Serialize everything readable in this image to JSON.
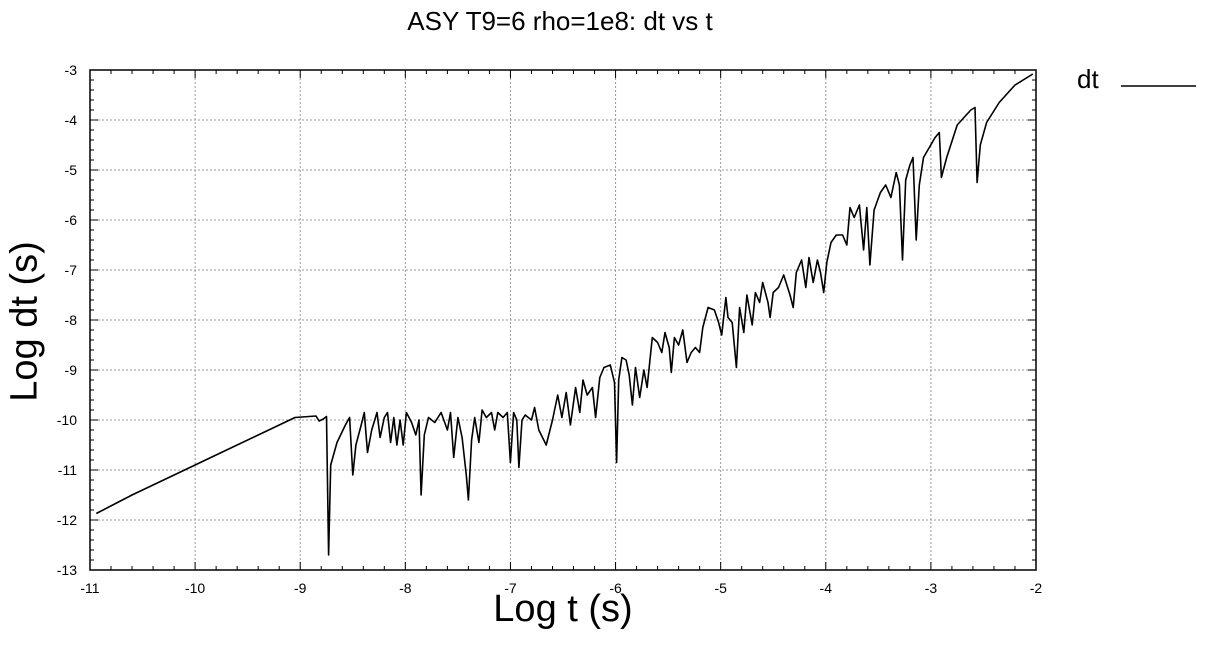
{
  "chart_data": {
    "type": "line",
    "title": "ASY T9=6 rho=1e8: dt vs t",
    "xlabel": "Log t (s)",
    "ylabel": "Log dt (s)",
    "xlim": [
      -11,
      -2
    ],
    "ylim": [
      -13,
      -3
    ],
    "xticks": [
      "-11",
      "-10",
      "-9",
      "-8",
      "-7",
      "-6",
      "-5",
      "-4",
      "-3",
      "-2"
    ],
    "yticks": [
      "-13",
      "-12",
      "-11",
      "-10",
      "-9",
      "-8",
      "-7",
      "-6",
      "-5",
      "-4",
      "-3"
    ],
    "grid": true,
    "legend_position": "top-right",
    "series": [
      {
        "name": "dt",
        "color": "#000000",
        "points": [
          [
            -10.94,
            -11.87
          ],
          [
            -10.6,
            -11.5
          ],
          [
            -10.2,
            -11.1
          ],
          [
            -9.8,
            -10.7
          ],
          [
            -9.4,
            -10.3
          ],
          [
            -9.05,
            -9.95
          ],
          [
            -8.85,
            -9.92
          ],
          [
            -8.82,
            -10.02
          ],
          [
            -8.78,
            -9.98
          ],
          [
            -8.75,
            -9.93
          ],
          [
            -8.73,
            -12.7
          ],
          [
            -8.71,
            -10.9
          ],
          [
            -8.65,
            -10.45
          ],
          [
            -8.57,
            -10.1
          ],
          [
            -8.53,
            -9.95
          ],
          [
            -8.5,
            -11.1
          ],
          [
            -8.47,
            -10.5
          ],
          [
            -8.42,
            -10.1
          ],
          [
            -8.39,
            -9.85
          ],
          [
            -8.36,
            -10.65
          ],
          [
            -8.32,
            -10.2
          ],
          [
            -8.27,
            -9.85
          ],
          [
            -8.24,
            -10.35
          ],
          [
            -8.2,
            -9.95
          ],
          [
            -8.17,
            -9.85
          ],
          [
            -8.14,
            -10.45
          ],
          [
            -8.11,
            -9.95
          ],
          [
            -8.08,
            -10.5
          ],
          [
            -8.05,
            -10.0
          ],
          [
            -8.02,
            -10.5
          ],
          [
            -7.99,
            -9.85
          ],
          [
            -7.94,
            -10.05
          ],
          [
            -7.9,
            -10.3
          ],
          [
            -7.87,
            -10.0
          ],
          [
            -7.85,
            -11.5
          ],
          [
            -7.82,
            -10.3
          ],
          [
            -7.78,
            -9.95
          ],
          [
            -7.72,
            -10.05
          ],
          [
            -7.66,
            -9.85
          ],
          [
            -7.6,
            -10.2
          ],
          [
            -7.57,
            -9.85
          ],
          [
            -7.54,
            -10.75
          ],
          [
            -7.5,
            -9.95
          ],
          [
            -7.46,
            -10.35
          ],
          [
            -7.42,
            -11.1
          ],
          [
            -7.4,
            -11.6
          ],
          [
            -7.37,
            -10.4
          ],
          [
            -7.34,
            -9.95
          ],
          [
            -7.3,
            -10.45
          ],
          [
            -7.27,
            -9.8
          ],
          [
            -7.23,
            -9.95
          ],
          [
            -7.18,
            -9.85
          ],
          [
            -7.15,
            -10.2
          ],
          [
            -7.12,
            -9.85
          ],
          [
            -7.07,
            -9.95
          ],
          [
            -7.03,
            -9.85
          ],
          [
            -7.0,
            -10.85
          ],
          [
            -6.97,
            -9.85
          ],
          [
            -6.94,
            -10.0
          ],
          [
            -6.92,
            -10.95
          ],
          [
            -6.89,
            -10.0
          ],
          [
            -6.86,
            -9.9
          ],
          [
            -6.8,
            -10.0
          ],
          [
            -6.77,
            -9.75
          ],
          [
            -6.73,
            -10.2
          ],
          [
            -6.66,
            -10.5
          ],
          [
            -6.6,
            -10.0
          ],
          [
            -6.55,
            -9.5
          ],
          [
            -6.51,
            -9.95
          ],
          [
            -6.47,
            -9.45
          ],
          [
            -6.43,
            -10.1
          ],
          [
            -6.38,
            -9.35
          ],
          [
            -6.34,
            -9.85
          ],
          [
            -6.31,
            -9.2
          ],
          [
            -6.27,
            -9.5
          ],
          [
            -6.22,
            -9.35
          ],
          [
            -6.19,
            -9.95
          ],
          [
            -6.15,
            -9.15
          ],
          [
            -6.11,
            -8.95
          ],
          [
            -6.05,
            -8.9
          ],
          [
            -6.01,
            -9.25
          ],
          [
            -5.99,
            -10.85
          ],
          [
            -5.97,
            -9.2
          ],
          [
            -5.94,
            -8.75
          ],
          [
            -5.9,
            -8.8
          ],
          [
            -5.87,
            -9.1
          ],
          [
            -5.84,
            -9.7
          ],
          [
            -5.81,
            -8.95
          ],
          [
            -5.77,
            -9.55
          ],
          [
            -5.73,
            -9.0
          ],
          [
            -5.7,
            -9.35
          ],
          [
            -5.65,
            -8.35
          ],
          [
            -5.6,
            -8.45
          ],
          [
            -5.56,
            -8.65
          ],
          [
            -5.53,
            -8.25
          ],
          [
            -5.49,
            -8.55
          ],
          [
            -5.47,
            -9.05
          ],
          [
            -5.44,
            -8.35
          ],
          [
            -5.4,
            -8.5
          ],
          [
            -5.36,
            -8.2
          ],
          [
            -5.32,
            -8.85
          ],
          [
            -5.28,
            -8.65
          ],
          [
            -5.24,
            -8.55
          ],
          [
            -5.2,
            -8.65
          ],
          [
            -5.17,
            -8.15
          ],
          [
            -5.12,
            -7.75
          ],
          [
            -5.06,
            -7.8
          ],
          [
            -5.02,
            -8.05
          ],
          [
            -4.99,
            -8.3
          ],
          [
            -4.95,
            -7.55
          ],
          [
            -4.93,
            -7.95
          ],
          [
            -4.89,
            -8.05
          ],
          [
            -4.85,
            -8.95
          ],
          [
            -4.82,
            -7.75
          ],
          [
            -4.78,
            -8.25
          ],
          [
            -4.75,
            -7.5
          ],
          [
            -4.7,
            -8.1
          ],
          [
            -4.67,
            -7.45
          ],
          [
            -4.63,
            -7.65
          ],
          [
            -4.6,
            -7.25
          ],
          [
            -4.55,
            -7.65
          ],
          [
            -4.53,
            -7.95
          ],
          [
            -4.5,
            -7.45
          ],
          [
            -4.45,
            -7.35
          ],
          [
            -4.4,
            -7.1
          ],
          [
            -4.34,
            -7.5
          ],
          [
            -4.31,
            -7.75
          ],
          [
            -4.28,
            -7.05
          ],
          [
            -4.23,
            -6.8
          ],
          [
            -4.19,
            -7.35
          ],
          [
            -4.16,
            -6.75
          ],
          [
            -4.12,
            -7.25
          ],
          [
            -4.08,
            -6.8
          ],
          [
            -4.05,
            -7.05
          ],
          [
            -4.02,
            -7.45
          ],
          [
            -3.99,
            -6.85
          ],
          [
            -3.95,
            -6.45
          ],
          [
            -3.9,
            -6.3
          ],
          [
            -3.84,
            -6.3
          ],
          [
            -3.8,
            -6.5
          ],
          [
            -3.77,
            -5.75
          ],
          [
            -3.73,
            -5.95
          ],
          [
            -3.68,
            -5.7
          ],
          [
            -3.64,
            -6.6
          ],
          [
            -3.61,
            -5.75
          ],
          [
            -3.58,
            -6.9
          ],
          [
            -3.54,
            -5.8
          ],
          [
            -3.48,
            -5.45
          ],
          [
            -3.43,
            -5.3
          ],
          [
            -3.38,
            -5.55
          ],
          [
            -3.33,
            -5.05
          ],
          [
            -3.3,
            -5.3
          ],
          [
            -3.27,
            -6.8
          ],
          [
            -3.24,
            -5.2
          ],
          [
            -3.2,
            -4.9
          ],
          [
            -3.17,
            -4.75
          ],
          [
            -3.14,
            -6.4
          ],
          [
            -3.11,
            -5.3
          ],
          [
            -3.07,
            -4.75
          ],
          [
            -2.96,
            -4.35
          ],
          [
            -2.92,
            -4.25
          ],
          [
            -2.9,
            -5.15
          ],
          [
            -2.85,
            -4.75
          ],
          [
            -2.75,
            -4.1
          ],
          [
            -2.62,
            -3.8
          ],
          [
            -2.58,
            -3.75
          ],
          [
            -2.56,
            -5.25
          ],
          [
            -2.53,
            -4.5
          ],
          [
            -2.47,
            -4.05
          ],
          [
            -2.35,
            -3.65
          ],
          [
            -2.2,
            -3.3
          ],
          [
            -2.03,
            -3.08
          ]
        ]
      }
    ]
  }
}
